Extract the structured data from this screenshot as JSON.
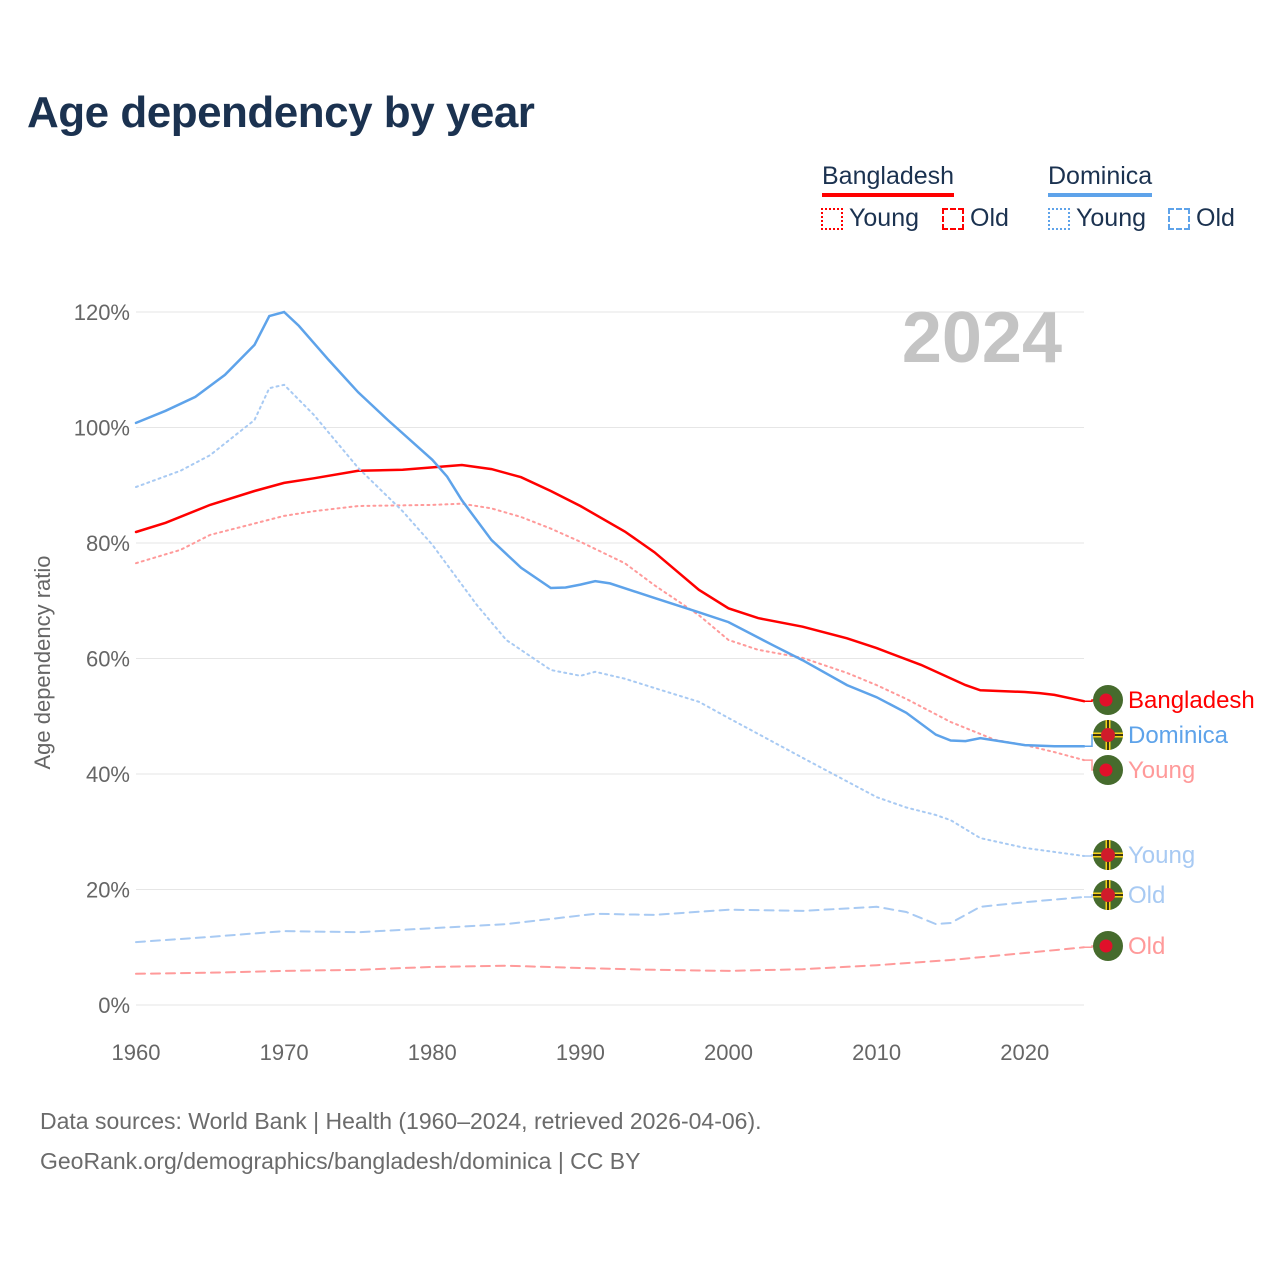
{
  "title": "Age dependency by year",
  "legend": {
    "groups": [
      {
        "name": "Bangladesh",
        "color": "#ff0000",
        "items": [
          "Young",
          "Old"
        ]
      },
      {
        "name": "Dominica",
        "color": "#5ea3ea",
        "items": [
          "Young",
          "Old"
        ]
      }
    ]
  },
  "footer": {
    "line1": "Data sources: World Bank | Health (1960–2024, retrieved 2026-04-06).",
    "line2": "GeoRank.org/demographics/bangladesh/dominica | CC BY"
  },
  "chart_data": {
    "type": "line",
    "title": "Age dependency by year",
    "year_label": "2024",
    "xlabel": "",
    "ylabel": "Age dependency ratio",
    "xlim": [
      1960,
      2024
    ],
    "ylim": [
      0,
      120
    ],
    "x_ticks": [
      "1960",
      "1970",
      "1980",
      "1990",
      "2000",
      "2010",
      "2020"
    ],
    "y_ticks": [
      "0%",
      "20%",
      "40%",
      "60%",
      "80%",
      "100%",
      "120%"
    ],
    "grid": true,
    "series": [
      {
        "name": "Bangladesh",
        "end_label": "Bangladesh",
        "country": "Bangladesh",
        "style": "solid",
        "color": "#ff0000",
        "points": [
          [
            1960,
            81.9
          ],
          [
            1962,
            83.5
          ],
          [
            1965,
            86.6
          ],
          [
            1968,
            89
          ],
          [
            1970,
            90.4
          ],
          [
            1972,
            91.2
          ],
          [
            1975,
            92.5
          ],
          [
            1978,
            92.7
          ],
          [
            1982,
            93.5
          ],
          [
            1984,
            92.8
          ],
          [
            1986,
            91.4
          ],
          [
            1988,
            89
          ],
          [
            1990,
            86.4
          ],
          [
            1993,
            82
          ],
          [
            1995,
            78.4
          ],
          [
            1998,
            71.9
          ],
          [
            2000,
            68.7
          ],
          [
            2002,
            67
          ],
          [
            2005,
            65.5
          ],
          [
            2008,
            63.5
          ],
          [
            2010,
            61.8
          ],
          [
            2013,
            58.9
          ],
          [
            2016,
            55.4
          ],
          [
            2017,
            54.5
          ],
          [
            2020,
            54.2
          ],
          [
            2021,
            54
          ],
          [
            2022,
            53.7
          ],
          [
            2024,
            52.6
          ]
        ]
      },
      {
        "name": "Bangladesh Young",
        "end_label": "Young",
        "country": "Bangladesh",
        "style": "dotted",
        "color": "#ff9a9a",
        "points": [
          [
            1960,
            76.5
          ],
          [
            1963,
            78.8
          ],
          [
            1965,
            81.4
          ],
          [
            1970,
            84.7
          ],
          [
            1972,
            85.5
          ],
          [
            1975,
            86.4
          ],
          [
            1980,
            86.6
          ],
          [
            1982,
            86.8
          ],
          [
            1984,
            86
          ],
          [
            1986,
            84.5
          ],
          [
            1988,
            82.5
          ],
          [
            1990,
            80.2
          ],
          [
            1993,
            76.5
          ],
          [
            1995,
            72.7
          ],
          [
            1998,
            67.5
          ],
          [
            2000,
            63.2
          ],
          [
            2002,
            61.5
          ],
          [
            2005,
            60.1
          ],
          [
            2008,
            57.5
          ],
          [
            2010,
            55.4
          ],
          [
            2012,
            53
          ],
          [
            2015,
            49
          ],
          [
            2018,
            45.9
          ],
          [
            2020,
            45
          ],
          [
            2022,
            43.8
          ],
          [
            2024,
            42.4
          ]
        ]
      },
      {
        "name": "Bangladesh Old",
        "end_label": "Old",
        "country": "Bangladesh",
        "style": "dashed",
        "color": "#ff9a9a",
        "points": [
          [
            1960,
            5.4
          ],
          [
            1965,
            5.6
          ],
          [
            1970,
            5.9
          ],
          [
            1975,
            6.1
          ],
          [
            1980,
            6.6
          ],
          [
            1985,
            6.8
          ],
          [
            1990,
            6.4
          ],
          [
            1995,
            6.1
          ],
          [
            2000,
            5.9
          ],
          [
            2005,
            6.2
          ],
          [
            2010,
            6.9
          ],
          [
            2015,
            7.8
          ],
          [
            2020,
            9.0
          ],
          [
            2024,
            10.0
          ]
        ]
      },
      {
        "name": "Dominica",
        "end_label": "Dominica",
        "country": "Dominica",
        "style": "solid",
        "color": "#5ea3ea",
        "points": [
          [
            1960,
            100.8
          ],
          [
            1962,
            102.9
          ],
          [
            1964,
            105.3
          ],
          [
            1966,
            109.1
          ],
          [
            1968,
            114.3
          ],
          [
            1969,
            119.3
          ],
          [
            1970,
            120
          ],
          [
            1971,
            117.6
          ],
          [
            1973,
            111.7
          ],
          [
            1975,
            106.1
          ],
          [
            1977,
            101.3
          ],
          [
            1980,
            94.4
          ],
          [
            1981,
            91.5
          ],
          [
            1982,
            87.4
          ],
          [
            1984,
            80.5
          ],
          [
            1986,
            75.7
          ],
          [
            1988,
            72.2
          ],
          [
            1989,
            72.3
          ],
          [
            1990,
            72.8
          ],
          [
            1991,
            73.4
          ],
          [
            1992,
            73
          ],
          [
            1995,
            70.5
          ],
          [
            1998,
            68
          ],
          [
            2000,
            66.3
          ],
          [
            2003,
            62.3
          ],
          [
            2005,
            59.7
          ],
          [
            2008,
            55.4
          ],
          [
            2010,
            53.3
          ],
          [
            2012,
            50.6
          ],
          [
            2014,
            46.8
          ],
          [
            2015,
            45.8
          ],
          [
            2016,
            45.7
          ],
          [
            2017,
            46.2
          ],
          [
            2020,
            45
          ],
          [
            2022,
            44.8
          ],
          [
            2024,
            44.8
          ]
        ]
      },
      {
        "name": "Dominica Young",
        "end_label": "Young",
        "country": "Dominica",
        "style": "dotted",
        "color": "#a8caf3",
        "points": [
          [
            1960,
            89.7
          ],
          [
            1963,
            92.5
          ],
          [
            1965,
            95.2
          ],
          [
            1968,
            101.3
          ],
          [
            1969,
            106.8
          ],
          [
            1970,
            107.4
          ],
          [
            1972,
            102.2
          ],
          [
            1975,
            93
          ],
          [
            1978,
            85.5
          ],
          [
            1980,
            79.7
          ],
          [
            1983,
            69.3
          ],
          [
            1985,
            63.2
          ],
          [
            1988,
            58
          ],
          [
            1990,
            57
          ],
          [
            1991,
            57.7
          ],
          [
            1993,
            56.5
          ],
          [
            1995,
            54.9
          ],
          [
            1998,
            52.5
          ],
          [
            2000,
            49.7
          ],
          [
            2005,
            42.8
          ],
          [
            2010,
            36
          ],
          [
            2012,
            34.2
          ],
          [
            2014,
            32.9
          ],
          [
            2015,
            32
          ],
          [
            2017,
            28.9
          ],
          [
            2020,
            27.2
          ],
          [
            2024,
            25.8
          ]
        ]
      },
      {
        "name": "Dominica Old",
        "end_label": "Old",
        "country": "Dominica",
        "style": "dashed",
        "color": "#a8caf3",
        "points": [
          [
            1960,
            10.9
          ],
          [
            1965,
            11.8
          ],
          [
            1970,
            12.8
          ],
          [
            1975,
            12.6
          ],
          [
            1980,
            13.3
          ],
          [
            1985,
            14
          ],
          [
            1991,
            15.8
          ],
          [
            1995,
            15.6
          ],
          [
            2000,
            16.5
          ],
          [
            2005,
            16.3
          ],
          [
            2010,
            17
          ],
          [
            2012,
            16.1
          ],
          [
            2014,
            14
          ],
          [
            2015,
            14.2
          ],
          [
            2017,
            17
          ],
          [
            2020,
            17.8
          ],
          [
            2024,
            18.7
          ]
        ]
      }
    ]
  }
}
